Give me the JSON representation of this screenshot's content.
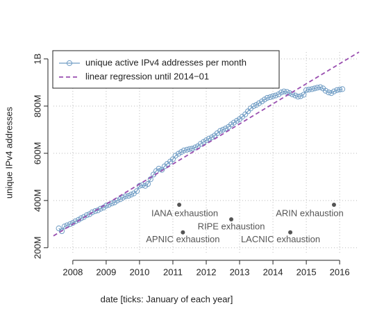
{
  "chart_data": {
    "type": "line",
    "xlabel": "date [ticks: January of each year]",
    "ylabel": "unique IPv4 addresses",
    "xlim": [
      2007.42,
      2016.58
    ],
    "ylim": [
      176,
      1029
    ],
    "xticks": [
      2008,
      2009,
      2010,
      2011,
      2012,
      2013,
      2014,
      2015,
      2016
    ],
    "yticks": [
      {
        "value": 200,
        "label": "200M"
      },
      {
        "value": 400,
        "label": "400M"
      },
      {
        "value": 600,
        "label": "600M"
      },
      {
        "value": 800,
        "label": "800M"
      },
      {
        "value": 1000,
        "label": "1B"
      }
    ],
    "grid": true,
    "legend": "top-left",
    "series": [
      {
        "name": "unique active IPv4 addresses per month",
        "color": "#6f9cc4",
        "style": "line-points",
        "x": [
          2007.58,
          2007.67,
          2007.75,
          2007.83,
          2007.92,
          2008.0,
          2008.08,
          2008.17,
          2008.25,
          2008.33,
          2008.42,
          2008.5,
          2008.58,
          2008.67,
          2008.75,
          2008.83,
          2008.92,
          2009.0,
          2009.08,
          2009.17,
          2009.25,
          2009.33,
          2009.42,
          2009.5,
          2009.58,
          2009.67,
          2009.75,
          2009.83,
          2009.92,
          2010.0,
          2010.08,
          2010.17,
          2010.25,
          2010.33,
          2010.42,
          2010.5,
          2010.58,
          2010.67,
          2010.75,
          2010.83,
          2010.92,
          2011.0,
          2011.08,
          2011.17,
          2011.25,
          2011.33,
          2011.42,
          2011.5,
          2011.58,
          2011.67,
          2011.75,
          2011.83,
          2011.92,
          2012.0,
          2012.08,
          2012.17,
          2012.25,
          2012.33,
          2012.42,
          2012.5,
          2012.58,
          2012.67,
          2012.75,
          2012.83,
          2012.92,
          2013.0,
          2013.08,
          2013.17,
          2013.25,
          2013.33,
          2013.42,
          2013.5,
          2013.58,
          2013.67,
          2013.75,
          2013.83,
          2013.92,
          2014.0,
          2014.08,
          2014.17,
          2014.25,
          2014.33,
          2014.42,
          2014.5,
          2014.58,
          2014.67,
          2014.75,
          2014.83,
          2014.92,
          2015.0,
          2015.08,
          2015.17,
          2015.25,
          2015.33,
          2015.42,
          2015.5,
          2015.58,
          2015.67,
          2015.75,
          2015.83,
          2015.92,
          2016.0,
          2016.08
        ],
        "values": [
          282,
          270,
          290,
          295,
          300,
          305,
          312,
          318,
          325,
          330,
          338,
          342,
          350,
          355,
          358,
          365,
          370,
          378,
          382,
          388,
          392,
          400,
          405,
          412,
          418,
          420,
          425,
          430,
          440,
          462,
          465,
          462,
          470,
          490,
          510,
          525,
          535,
          530,
          545,
          555,
          565,
          575,
          590,
          598,
          605,
          612,
          615,
          618,
          620,
          625,
          630,
          640,
          648,
          655,
          662,
          668,
          675,
          685,
          695,
          700,
          705,
          712,
          722,
          730,
          738,
          745,
          755,
          765,
          778,
          790,
          800,
          805,
          812,
          820,
          828,
          835,
          838,
          842,
          845,
          850,
          858,
          862,
          860,
          855,
          850,
          845,
          840,
          842,
          848,
          868,
          870,
          872,
          875,
          878,
          880,
          875,
          865,
          858,
          855,
          862,
          868,
          870,
          872
        ]
      },
      {
        "name": "linear regression until 2014−01",
        "color": "#9a4fb0",
        "style": "dashed",
        "x": [
          2007.42,
          2016.58
        ],
        "values": [
          250,
          1029
        ]
      }
    ],
    "annotations": [
      {
        "text": "IANA exhaustion",
        "x": 2011.19,
        "y": 382
      },
      {
        "text": "APNIC exhaustion",
        "x": 2011.3,
        "y": 265
      },
      {
        "text": "RIPE exhaustion",
        "x": 2012.75,
        "y": 320
      },
      {
        "text": "LACNIC exhaustion",
        "x": 2014.52,
        "y": 265
      },
      {
        "text": "ARIN exhaustion",
        "x": 2015.83,
        "y": 382
      }
    ]
  }
}
